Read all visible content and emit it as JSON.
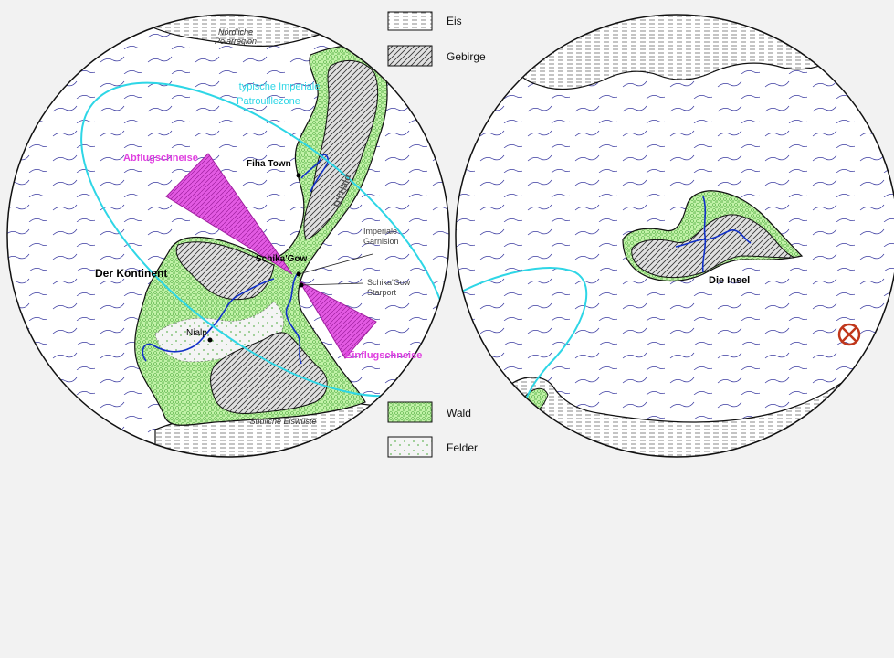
{
  "legend": {
    "ice": "Eis",
    "mountains": "Gebirge",
    "forest": "Wald",
    "fields": "Felder"
  },
  "map": {
    "continent": {
      "name": "Der Kontinent",
      "north_polar": [
        "Nördliche",
        "Polarregion"
      ],
      "south_ice": "Südliche Eiswüste",
      "mountain_range": "D'f'Hald",
      "patrol_zone": [
        "typische Imperiale",
        "Patrouillezone"
      ],
      "departure_lane": "Abflugschneise",
      "approach_lane": "Einflugschneise",
      "places": {
        "fiha_town": "Fiha Town",
        "schika_gow": "Schika'Gow",
        "garrison": [
          "Imperiale",
          "Garnision"
        ],
        "starport": [
          "Schika'Gow",
          "Starport"
        ],
        "nialp": "Nialp"
      }
    },
    "island": {
      "name": "Die Insel"
    }
  },
  "colors": {
    "ocean_lines": "#3a3aa0",
    "forest": "#b9f0a0",
    "forest_dots": "#4aa83a",
    "mountain": "#cfcfcf",
    "patrol": "#2ed6e6",
    "lanes": "#e040e0",
    "rivers": "#1030c8",
    "marker": "#c0361a"
  },
  "icons": {
    "location_marker": "target-marker-icon"
  }
}
